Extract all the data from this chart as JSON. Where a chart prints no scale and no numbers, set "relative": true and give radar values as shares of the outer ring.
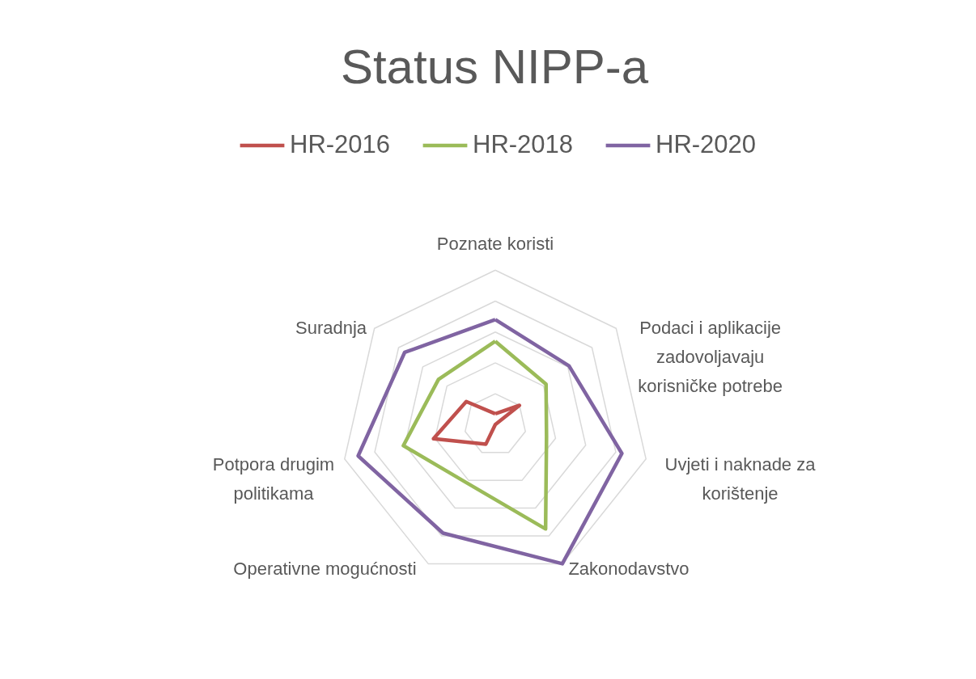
{
  "chart_data": {
    "type": "radar",
    "title": "Status NIPP-a",
    "categories": [
      "Poznate koristi",
      "Podaci i aplikacije zadovoljavaju korisničke potrebe",
      "Uvjeti i naknade za korištenje",
      "Zakonodavstvo",
      "Operativne mogućnosti",
      "Potpora drugim politikama",
      "Suradnja"
    ],
    "relative": true,
    "grid": true,
    "legend": "top",
    "series": [
      {
        "name": "HR-2016",
        "color": "#c0504d",
        "values": [
          0.07,
          0.2,
          0,
          0,
          0.14,
          0.41,
          0.24
        ]
      },
      {
        "name": "HR-2018",
        "color": "#9bbb59",
        "values": [
          0.54,
          0.42,
          0.34,
          0.75,
          0.42,
          0.61,
          0.47
        ]
      },
      {
        "name": "HR-2020",
        "color": "#8064a2",
        "values": [
          0.68,
          0.61,
          0.84,
          1,
          0.78,
          0.91,
          0.75
        ]
      }
    ]
  }
}
